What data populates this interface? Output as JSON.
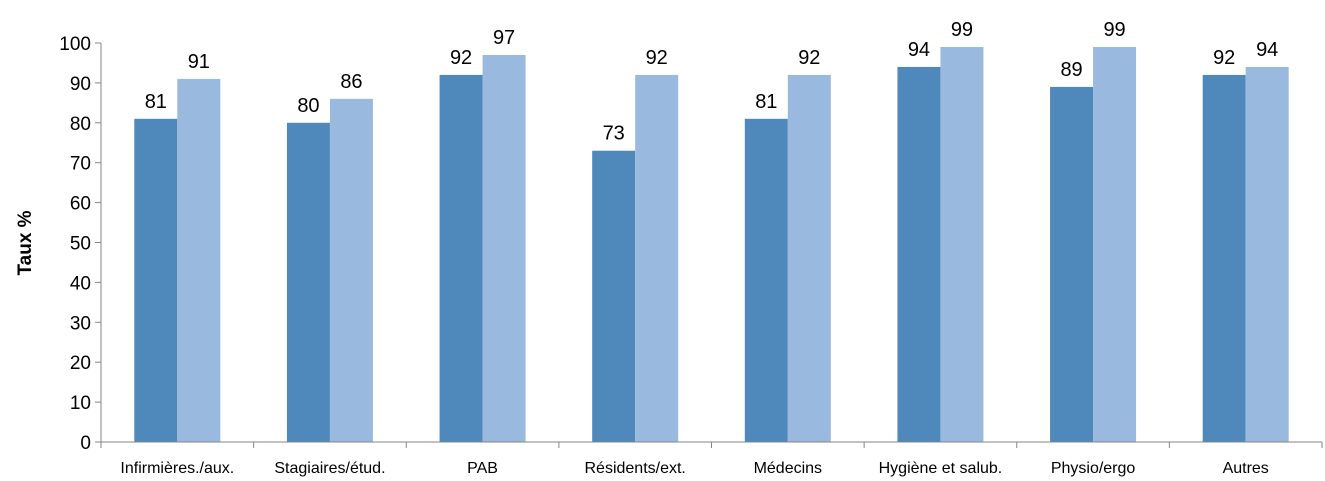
{
  "chart_data": {
    "type": "bar",
    "title": "",
    "xlabel": "",
    "ylabel": "Taux %",
    "ylim": [
      0,
      100
    ],
    "yticks": [
      0,
      10,
      20,
      30,
      40,
      50,
      60,
      70,
      80,
      90,
      100
    ],
    "grid": false,
    "legend": "none",
    "categories": [
      "Infirmières./aux.",
      "Stagiaires/étud.",
      "PAB",
      "Résidents/ext.",
      "Médecins",
      "Hygiène et salub.",
      "Physio/ergo",
      "Autres"
    ],
    "series": [
      {
        "color": "#4F88BB",
        "values": [
          81,
          80,
          92,
          73,
          81,
          94,
          89,
          92
        ]
      },
      {
        "color": "#9AB9DF",
        "values": [
          91,
          86,
          97,
          92,
          92,
          99,
          99,
          94
        ]
      }
    ]
  }
}
